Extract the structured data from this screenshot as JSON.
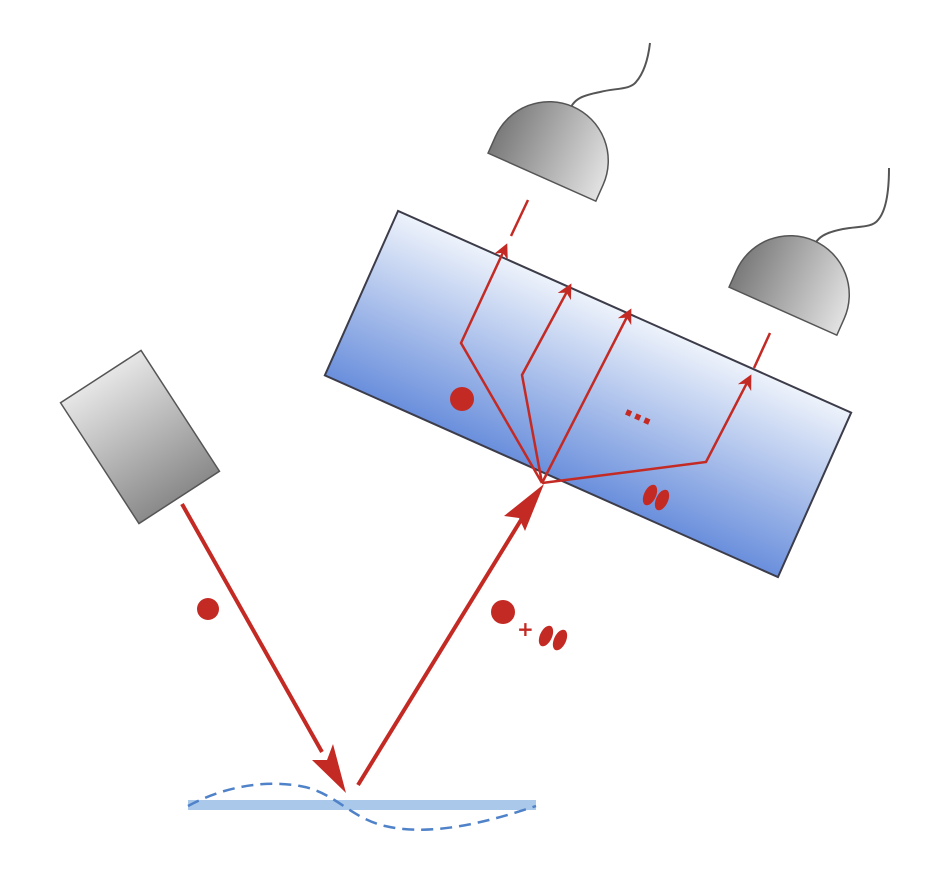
{
  "colors": {
    "beam": "#c42a24",
    "surface_light": "#a9c8ea",
    "surface_wave": "#4f82c8",
    "crystal_top": "#e8effa",
    "crystal_bottom": "#6e93dc",
    "detector_light": "#e3e3e3",
    "detector_dark": "#7d7d7d",
    "outline": "#3c3c4a"
  },
  "labels": {
    "dots": "…",
    "plus": "+"
  },
  "icons": {
    "source": "laser-source-icon",
    "detector": "photodetector-icon",
    "single_mode": "filled-circle-icon",
    "squeezed_mode": "ellipse-pair-icon"
  }
}
